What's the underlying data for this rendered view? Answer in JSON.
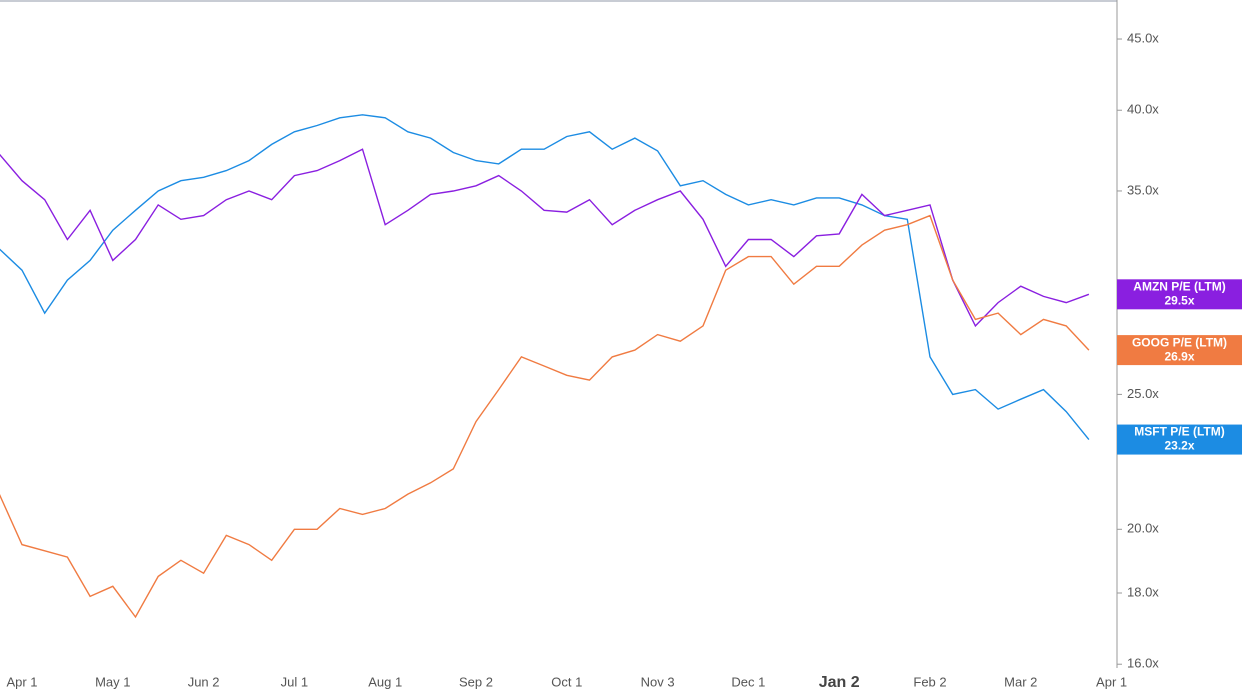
{
  "chart_data": {
    "type": "line",
    "log_scale": true,
    "categories": [
      null,
      "Apr 1",
      null,
      null,
      null,
      "May 1",
      null,
      null,
      null,
      "Jun 2",
      null,
      null,
      null,
      "Jul 1",
      null,
      null,
      null,
      "Aug 1",
      null,
      null,
      null,
      "Sep 2",
      null,
      null,
      null,
      "Oct 1",
      null,
      null,
      null,
      "Nov 3",
      null,
      null,
      null,
      "Dec 1",
      null,
      null,
      null,
      "Jan 2",
      null,
      null,
      null,
      "Feb 2",
      null,
      null,
      null,
      "Mar 2",
      null,
      null,
      null,
      "Apr 1"
    ],
    "series": [
      {
        "name": "MSFT P/E (LTM)",
        "color": "#1c8ce3",
        "end_label": "23.2x",
        "values": [
          31.8,
          30.7,
          28.6,
          30.2,
          31.2,
          32.8,
          33.9,
          35.0,
          35.6,
          35.8,
          36.2,
          36.8,
          37.8,
          38.6,
          39.0,
          39.5,
          39.7,
          39.5,
          38.6,
          38.2,
          37.3,
          36.8,
          36.6,
          37.5,
          37.5,
          38.3,
          38.6,
          37.5,
          38.2,
          37.4,
          35.3,
          35.6,
          34.8,
          34.2,
          34.5,
          34.2,
          34.6,
          34.6,
          34.2,
          33.6,
          33.4,
          26.6,
          25.0,
          25.2,
          24.4,
          24.8,
          25.2,
          24.3,
          23.2,
          null
        ]
      },
      {
        "name": "AMZN P/E (LTM)",
        "color": "#8a1fe0",
        "end_label": "29.5x",
        "values": [
          37.2,
          35.6,
          34.5,
          32.3,
          33.9,
          31.2,
          32.3,
          34.2,
          33.4,
          33.6,
          34.5,
          35.0,
          34.5,
          35.9,
          36.2,
          36.8,
          37.5,
          33.1,
          33.9,
          34.8,
          35.0,
          35.3,
          35.9,
          35.0,
          33.9,
          33.8,
          34.5,
          33.1,
          33.9,
          34.5,
          35.0,
          33.4,
          30.9,
          32.3,
          32.3,
          31.4,
          32.5,
          32.6,
          34.8,
          33.6,
          33.9,
          34.2,
          30.2,
          28.0,
          29.1,
          29.9,
          29.4,
          29.1,
          29.5,
          null
        ]
      },
      {
        "name": "GOOG P/E (LTM)",
        "color": "#f07b42",
        "end_label": "26.9x",
        "values": [
          21.2,
          19.5,
          19.3,
          19.1,
          17.9,
          18.2,
          17.3,
          18.5,
          19.0,
          18.6,
          19.8,
          19.5,
          19.0,
          20.0,
          20.0,
          20.7,
          20.5,
          20.7,
          21.2,
          21.6,
          22.1,
          23.9,
          25.2,
          26.6,
          26.2,
          25.8,
          25.6,
          26.6,
          26.9,
          27.6,
          27.3,
          28.0,
          30.7,
          31.4,
          31.4,
          30.0,
          30.9,
          30.9,
          32.0,
          32.8,
          33.1,
          33.6,
          30.2,
          28.3,
          28.6,
          27.6,
          28.3,
          28.0,
          26.9,
          null
        ]
      }
    ],
    "ylim": [
      15.9,
      48
    ],
    "yticks": [
      {
        "value": 16,
        "label": "16.0x"
      },
      {
        "value": 18,
        "label": "18.0x"
      },
      {
        "value": 20,
        "label": "20.0x"
      },
      {
        "value": 25,
        "label": "25.0x"
      },
      {
        "value": 35,
        "label": "35.0x"
      },
      {
        "value": 40,
        "label": "40.0x"
      },
      {
        "value": 45,
        "label": "45.0x"
      }
    ]
  }
}
